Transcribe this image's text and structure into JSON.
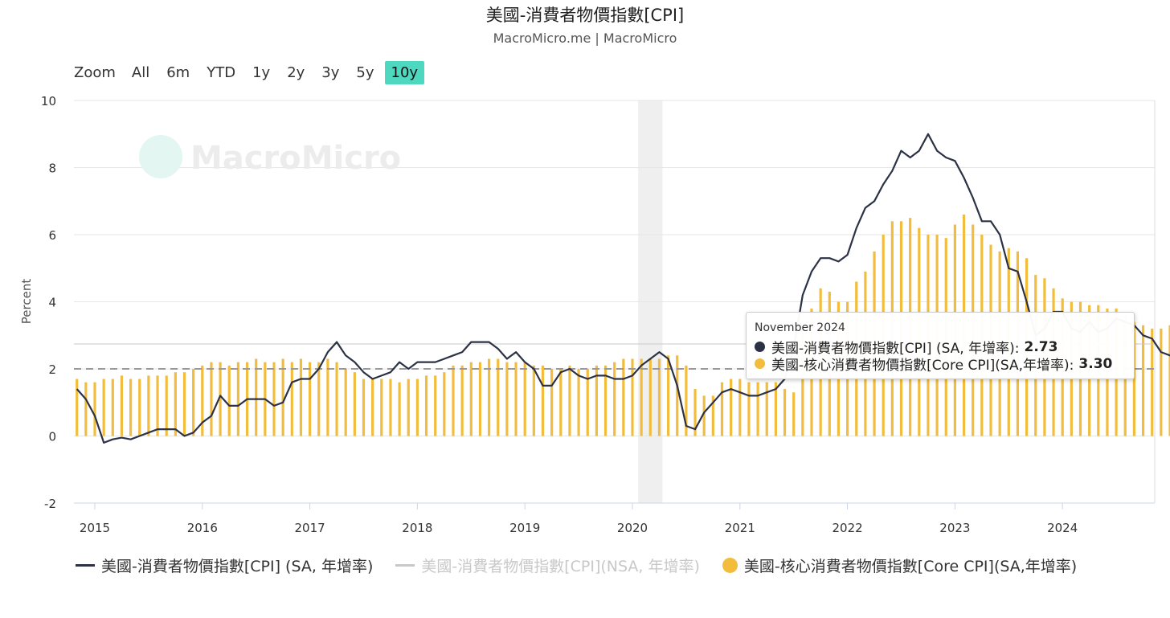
{
  "title": "美國-消費者物價指數[CPI]",
  "subtitle": "MacroMicro.me | MacroMicro",
  "watermark": "MacroMicro",
  "zoom": {
    "label": "Zoom",
    "buttons": [
      "All",
      "6m",
      "YTD",
      "1y",
      "2y",
      "3y",
      "5y",
      "10y"
    ],
    "active": "10y"
  },
  "colors": {
    "cpi": "#2b3245",
    "core": "#f2bd3c",
    "nsa": "#c8c8c8",
    "active_zoom": "#4fd8c0",
    "recession": "#efefef"
  },
  "tooltip": {
    "date": "November 2024",
    "rows": [
      {
        "label": "美國-消費者物價指數[CPI] (SA, 年增率):",
        "value": "2.73",
        "color": "#2b3245"
      },
      {
        "label": "美國-核心消費者物價指數[Core CPI](SA,年增率):",
        "value": "3.30",
        "color": "#f2bd3c"
      }
    ]
  },
  "legend": [
    {
      "label": "美國-消費者物價指數[CPI] (SA, 年增率)",
      "type": "line",
      "color": "#2b3245",
      "visible": true
    },
    {
      "label": "美國-消費者物價指數[CPI](NSA, 年增率)",
      "type": "line",
      "color": "#c8c8c8",
      "visible": false
    },
    {
      "label": "美國-核心消費者物價指數[Core CPI](SA,年增率)",
      "type": "dot",
      "color": "#f2bd3c",
      "visible": true
    }
  ],
  "chart_data": {
    "type": "bar+line",
    "ylabel": "Percent",
    "ylim": [
      -2,
      10
    ],
    "yticks": [
      -2,
      0,
      2,
      4,
      6,
      8,
      10
    ],
    "xticks": [
      "2015",
      "2016",
      "2017",
      "2018",
      "2019",
      "2020",
      "2021",
      "2022",
      "2023",
      "2024"
    ],
    "x_start": "2014-11",
    "x_end": "2024-11",
    "reference_line": 2,
    "recession_band": [
      "2020-02",
      "2020-04"
    ],
    "series": [
      {
        "name": "美國-消費者物價指數[CPI] (SA, 年增率)",
        "type": "line",
        "values": [
          1.4,
          1.1,
          0.6,
          -0.2,
          -0.1,
          -0.05,
          -0.1,
          0.0,
          0.1,
          0.2,
          0.2,
          0.2,
          0.0,
          0.1,
          0.4,
          0.6,
          1.2,
          0.9,
          0.9,
          1.1,
          1.1,
          1.1,
          0.9,
          1.0,
          1.6,
          1.7,
          1.7,
          2.0,
          2.5,
          2.8,
          2.4,
          2.2,
          1.9,
          1.7,
          1.8,
          1.9,
          2.2,
          2.0,
          2.2,
          2.2,
          2.2,
          2.3,
          2.4,
          2.5,
          2.8,
          2.8,
          2.8,
          2.6,
          2.3,
          2.5,
          2.2,
          2.0,
          1.5,
          1.5,
          1.9,
          2.0,
          1.8,
          1.7,
          1.8,
          1.8,
          1.7,
          1.7,
          1.8,
          2.1,
          2.3,
          2.5,
          2.3,
          1.5,
          0.3,
          0.2,
          0.7,
          1.0,
          1.3,
          1.4,
          1.3,
          1.2,
          1.2,
          1.3,
          1.4,
          1.7,
          2.6,
          4.2,
          4.9,
          5.3,
          5.3,
          5.2,
          5.4,
          6.2,
          6.8,
          7.0,
          7.5,
          7.9,
          8.5,
          8.3,
          8.5,
          9.0,
          8.5,
          8.3,
          8.2,
          7.7,
          7.1,
          6.4,
          6.4,
          6.0,
          5.0,
          4.9,
          4.0,
          3.0,
          3.2,
          3.7,
          3.7,
          3.2,
          3.1,
          3.4,
          3.1,
          3.2,
          3.5,
          3.4,
          3.3,
          3.0,
          2.9,
          2.5,
          2.4,
          2.6,
          2.73
        ]
      },
      {
        "name": "美國-核心消費者物價指數[Core CPI](SA,年增率)",
        "type": "bar",
        "values": [
          1.7,
          1.6,
          1.6,
          1.7,
          1.7,
          1.8,
          1.7,
          1.7,
          1.8,
          1.8,
          1.8,
          1.9,
          1.9,
          2.0,
          2.1,
          2.2,
          2.2,
          2.1,
          2.2,
          2.2,
          2.3,
          2.2,
          2.2,
          2.3,
          2.2,
          2.3,
          2.2,
          2.2,
          2.3,
          2.2,
          2.0,
          1.9,
          1.7,
          1.7,
          1.7,
          1.7,
          1.6,
          1.7,
          1.7,
          1.8,
          1.8,
          1.9,
          2.1,
          2.1,
          2.2,
          2.2,
          2.3,
          2.3,
          2.2,
          2.2,
          2.2,
          2.1,
          2.1,
          2.0,
          2.0,
          2.1,
          2.0,
          2.0,
          2.1,
          2.1,
          2.2,
          2.3,
          2.3,
          2.3,
          2.3,
          2.3,
          2.4,
          2.4,
          2.1,
          1.4,
          1.2,
          1.2,
          1.6,
          1.7,
          1.7,
          1.6,
          1.6,
          1.6,
          1.6,
          1.4,
          1.3,
          3.0,
          3.8,
          4.4,
          4.3,
          4.0,
          4.0,
          4.6,
          4.9,
          5.5,
          6.0,
          6.4,
          6.4,
          6.5,
          6.2,
          6.0,
          6.0,
          5.9,
          6.3,
          6.6,
          6.3,
          6.0,
          5.7,
          5.5,
          5.6,
          5.5,
          5.3,
          4.8,
          4.7,
          4.4,
          4.1,
          4.0,
          4.0,
          3.9,
          3.9,
          3.8,
          3.8,
          3.6,
          3.4,
          3.3,
          3.2,
          3.2,
          3.3,
          3.3,
          3.3
        ]
      }
    ]
  }
}
